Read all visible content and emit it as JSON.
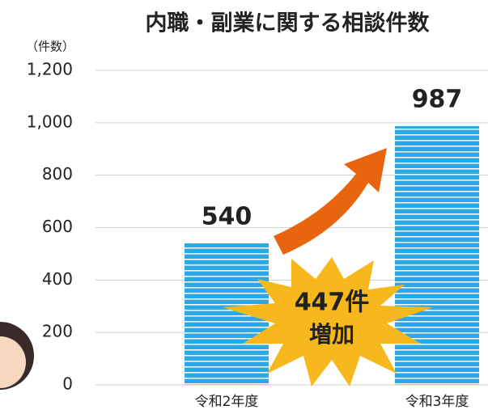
{
  "chart_data": {
    "type": "bar",
    "title": "内職・副業に関する相談件数",
    "y_label": "（件数）",
    "categories": [
      "令和2年度",
      "令和3年度"
    ],
    "values": [
      540,
      987
    ],
    "color": "#2ea7e6",
    "ylim": [
      0,
      1200
    ],
    "yticks": [
      0,
      200,
      400,
      600,
      800,
      {
        "value": 1000,
        "label": "1,000"
      },
      {
        "value": 1200,
        "label": "1,200"
      }
    ],
    "grid": true,
    "annotations": [
      "447件",
      "増加"
    ]
  }
}
